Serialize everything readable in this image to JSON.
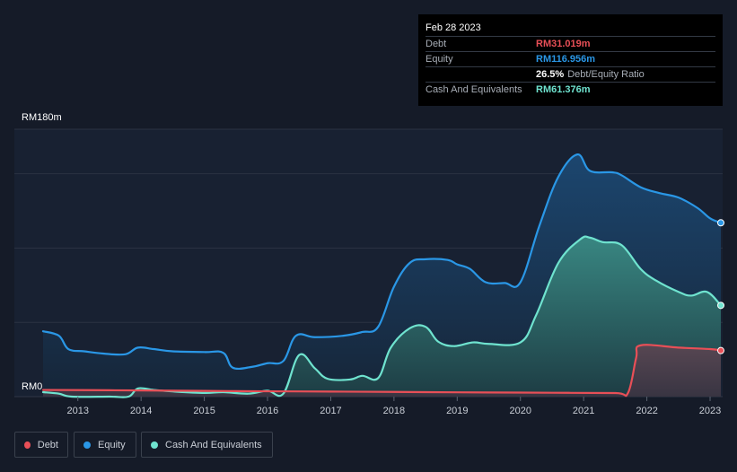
{
  "tooltip": {
    "date": "Feb 28 2023",
    "rows": [
      {
        "label": "Debt",
        "value": "RM31.019m",
        "color": "#e84f57"
      },
      {
        "label": "Equity",
        "value": "RM116.956m",
        "color": "#2a97e6"
      },
      {
        "label": "",
        "value": "26.5%",
        "extra": "Debt/Equity Ratio",
        "color": "#ffffff"
      },
      {
        "label": "Cash And Equivalents",
        "value": "RM61.376m",
        "color": "#6fe3cf"
      }
    ]
  },
  "legend": {
    "items": [
      {
        "label": "Debt",
        "color": "#e84f57"
      },
      {
        "label": "Equity",
        "color": "#2a97e6"
      },
      {
        "label": "Cash And Equivalents",
        "color": "#6fe3cf"
      }
    ]
  },
  "chart_data": {
    "type": "area",
    "ylim": [
      0,
      180
    ],
    "y_tick_labels": [
      "RM180m",
      "RM0"
    ],
    "x_tick_labels": [
      "2013",
      "2014",
      "2015",
      "2016",
      "2017",
      "2018",
      "2019",
      "2020",
      "2021",
      "2022",
      "2023"
    ],
    "xlim": [
      2012.45,
      2023.17
    ],
    "series": [
      {
        "name": "Debt",
        "color": "#e84f57",
        "points": [
          [
            2012.45,
            4.5
          ],
          [
            2013.5,
            4.3
          ],
          [
            2014.5,
            4.0
          ],
          [
            2015.5,
            3.7
          ],
          [
            2016.5,
            3.5
          ],
          [
            2017.5,
            3.3
          ],
          [
            2018.5,
            3.0
          ],
          [
            2019.5,
            2.8
          ],
          [
            2020.5,
            2.6
          ],
          [
            2021.5,
            2.4
          ],
          [
            2021.7,
            2.4
          ],
          [
            2021.83,
            26
          ],
          [
            2021.9,
            34.5
          ],
          [
            2022.5,
            33
          ],
          [
            2023.0,
            32
          ],
          [
            2023.17,
            31.0
          ]
        ]
      },
      {
        "name": "Equity",
        "color": "#2a97e6",
        "points": [
          [
            2012.45,
            44
          ],
          [
            2012.7,
            41
          ],
          [
            2012.85,
            32
          ],
          [
            2013.1,
            30.5
          ],
          [
            2013.4,
            29
          ],
          [
            2013.75,
            28.5
          ],
          [
            2013.95,
            33
          ],
          [
            2014.2,
            32
          ],
          [
            2014.5,
            30.5
          ],
          [
            2015.0,
            30
          ],
          [
            2015.3,
            29.5
          ],
          [
            2015.45,
            19.5
          ],
          [
            2015.75,
            20
          ],
          [
            2016.0,
            22.5
          ],
          [
            2016.25,
            24
          ],
          [
            2016.45,
            41
          ],
          [
            2016.75,
            40
          ],
          [
            2017.2,
            41
          ],
          [
            2017.5,
            43.5
          ],
          [
            2017.75,
            47
          ],
          [
            2018.0,
            74
          ],
          [
            2018.25,
            90
          ],
          [
            2018.5,
            92.5
          ],
          [
            2018.85,
            92
          ],
          [
            2019.0,
            89
          ],
          [
            2019.2,
            86
          ],
          [
            2019.45,
            77
          ],
          [
            2019.75,
            76.5
          ],
          [
            2020.0,
            77
          ],
          [
            2020.3,
            115
          ],
          [
            2020.6,
            148
          ],
          [
            2020.9,
            163
          ],
          [
            2021.1,
            152
          ],
          [
            2021.45,
            151
          ],
          [
            2021.6,
            149
          ],
          [
            2021.9,
            141
          ],
          [
            2022.2,
            137
          ],
          [
            2022.5,
            134
          ],
          [
            2022.8,
            127
          ],
          [
            2023.0,
            120
          ],
          [
            2023.17,
            117.0
          ]
        ]
      },
      {
        "name": "Cash And Equivalents",
        "color": "#6fe3cf",
        "points": [
          [
            2012.45,
            3
          ],
          [
            2012.7,
            2
          ],
          [
            2012.9,
            0
          ],
          [
            2013.5,
            0
          ],
          [
            2013.8,
            0
          ],
          [
            2013.95,
            5.5
          ],
          [
            2014.2,
            4.5
          ],
          [
            2014.5,
            3.5
          ],
          [
            2015.0,
            2.5
          ],
          [
            2015.3,
            3
          ],
          [
            2015.7,
            2
          ],
          [
            2016.0,
            4
          ],
          [
            2016.25,
            2
          ],
          [
            2016.5,
            28
          ],
          [
            2016.75,
            19
          ],
          [
            2016.95,
            12
          ],
          [
            2017.3,
            11.5
          ],
          [
            2017.5,
            14
          ],
          [
            2017.75,
            12.5
          ],
          [
            2017.95,
            33
          ],
          [
            2018.25,
            46
          ],
          [
            2018.5,
            47
          ],
          [
            2018.7,
            37
          ],
          [
            2018.95,
            34
          ],
          [
            2019.25,
            36.5
          ],
          [
            2019.5,
            35.5
          ],
          [
            2020.0,
            36.5
          ],
          [
            2020.25,
            55
          ],
          [
            2020.6,
            90
          ],
          [
            2020.95,
            106
          ],
          [
            2021.1,
            107
          ],
          [
            2021.3,
            104
          ],
          [
            2021.6,
            102
          ],
          [
            2021.9,
            86
          ],
          [
            2022.15,
            78
          ],
          [
            2022.5,
            70.5
          ],
          [
            2022.7,
            68
          ],
          [
            2022.95,
            70.5
          ],
          [
            2023.17,
            61.4
          ]
        ]
      }
    ]
  }
}
